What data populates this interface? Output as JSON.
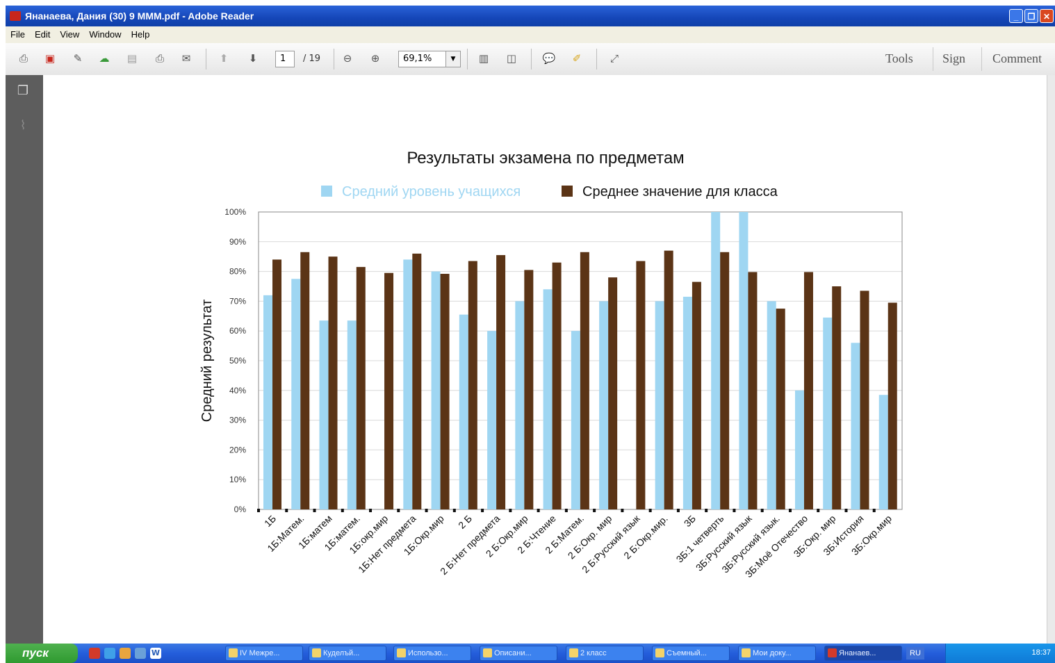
{
  "window": {
    "title": "Янанаева, Дания (30) 9 МММ.pdf - Adobe Reader"
  },
  "menu": [
    "File",
    "Edit",
    "View",
    "Window",
    "Help"
  ],
  "toolbar": {
    "page_current": "1",
    "page_total": "/ 19",
    "zoom": "69,1%",
    "tools_label": "Tools",
    "sign_label": "Sign",
    "comment_label": "Comment"
  },
  "chart_data": {
    "type": "bar",
    "title": "Результаты экзамена по предметам",
    "ylabel": "Средний результат",
    "xlabel": "",
    "ylim": [
      0,
      100
    ],
    "yticks": [
      "0%",
      "10%",
      "20%",
      "30%",
      "40%",
      "50%",
      "60%",
      "70%",
      "80%",
      "90%",
      "100%"
    ],
    "grid": true,
    "legend_position": "top",
    "categories": [
      "1Б",
      "1Б:Матем.",
      "1Б:матем",
      "1Б:матем.",
      "1Б:окр.мир",
      "1Б:Нет предмета",
      "1Б:Окр.мир",
      "2 Б",
      "2 Б:Нет предмета",
      "2 Б:Окр.мир",
      "2 Б:Чтение",
      "2 Б:Матем.",
      "2 Б:Окр. мир",
      "2 Б:Русский язык",
      "2 Б:Окр.мир.",
      "3Б",
      "3Б:1 четверть",
      "3Б:Русский язык",
      "3Б:Русский язык.",
      "3Б:Моё Отечество",
      "3Б:Окр. мир",
      "3Б:История",
      "3Б:Окр.мир"
    ],
    "series": [
      {
        "name": "Средний уровень учащихся",
        "color": "#9fd6f2",
        "values": [
          72,
          77.5,
          63.5,
          63.5,
          0,
          84,
          80,
          65.5,
          60,
          70,
          74,
          60,
          70,
          0,
          70,
          71.5,
          100,
          100,
          70,
          40,
          64.5,
          56,
          38.5
        ]
      },
      {
        "name": "Среднее значение для класса",
        "color": "#5b3416",
        "values": [
          84,
          86.5,
          85,
          81.5,
          79.5,
          86,
          79.2,
          83.5,
          85.5,
          80.5,
          83,
          86.5,
          78,
          83.5,
          87,
          76.5,
          86.5,
          79.8,
          67.5,
          79.8,
          75,
          73.5,
          69.5
        ]
      }
    ]
  },
  "taskbar": {
    "start_label": "пуск",
    "buttons": [
      "IV Межре...",
      "Куделъй...",
      "Использо...",
      "Описани...",
      "2 класс",
      "Съемный...",
      "Мои доку...",
      "Янанаев..."
    ],
    "lang": "RU",
    "clock": "18:37"
  }
}
